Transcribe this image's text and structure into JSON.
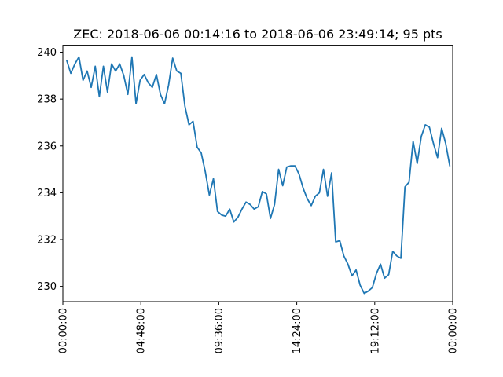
{
  "chart_data": {
    "type": "line",
    "title": "ZEC: 2018-06-06 00:14:16 to 2018-06-06 23:49:14; 95 pts",
    "xlabel": "",
    "ylabel": "",
    "grid": false,
    "legend": "none",
    "ylim": [
      229.35,
      240.3
    ],
    "xlim": [
      "2018-06-06 00:00:00",
      "2018-06-07 00:00:00"
    ],
    "x_ticks": [
      {
        "value": "2018-06-06 00:00:00",
        "label": "00:00:00"
      },
      {
        "value": "2018-06-06 04:48:00",
        "label": "04:48:00"
      },
      {
        "value": "2018-06-06 09:36:00",
        "label": "09:36:00"
      },
      {
        "value": "2018-06-06 14:24:00",
        "label": "14:24:00"
      },
      {
        "value": "2018-06-06 19:12:00",
        "label": "19:12:00"
      },
      {
        "value": "2018-06-07 00:00:00",
        "label": "00:00:00"
      }
    ],
    "y_ticks": [
      230,
      232,
      234,
      236,
      238,
      240
    ],
    "series_color": "#1f77b4",
    "x_start": "2018-06-06 00:14:16",
    "x_end": "2018-06-06 23:49:14",
    "values": [
      239.65,
      239.1,
      239.5,
      239.8,
      238.8,
      239.2,
      238.5,
      239.4,
      238.1,
      239.4,
      238.3,
      239.5,
      239.2,
      239.5,
      239.0,
      238.2,
      239.8,
      237.8,
      238.8,
      239.05,
      238.7,
      238.5,
      239.05,
      238.2,
      237.8,
      238.6,
      239.75,
      239.2,
      239.1,
      237.7,
      236.9,
      237.05,
      235.95,
      235.7,
      234.9,
      233.9,
      234.6,
      233.2,
      233.05,
      233.0,
      233.3,
      232.75,
      232.95,
      233.3,
      233.6,
      233.5,
      233.3,
      233.4,
      234.05,
      233.95,
      232.9,
      233.5,
      235.0,
      234.3,
      235.1,
      235.15,
      235.15,
      234.8,
      234.2,
      233.75,
      233.45,
      233.85,
      234.0,
      235.0,
      233.85,
      234.85,
      231.9,
      231.95,
      231.3,
      230.95,
      230.45,
      230.7,
      230.05,
      229.7,
      229.8,
      229.95,
      230.55,
      230.95,
      230.35,
      230.5,
      231.5,
      231.3,
      231.2,
      234.25,
      234.45,
      236.2,
      235.25,
      236.4,
      236.9,
      236.8,
      236.1,
      235.5,
      236.75,
      236.1,
      235.15
    ]
  }
}
